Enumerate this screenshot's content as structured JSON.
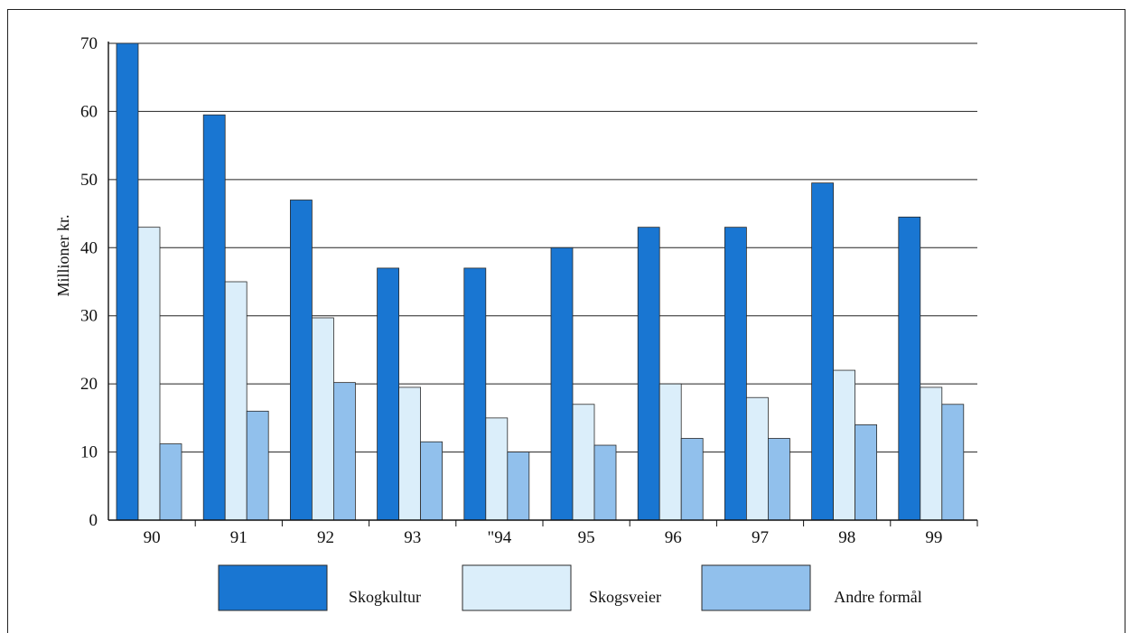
{
  "chart_data": {
    "type": "bar",
    "title": "",
    "xlabel": "",
    "ylabel": "Millioner kr.",
    "ylim": [
      0,
      70
    ],
    "yticks": [
      0,
      10,
      20,
      30,
      40,
      50,
      60,
      70
    ],
    "ytick_labels": [
      "0",
      "10",
      "20",
      "30",
      "40",
      "50",
      "60",
      "70"
    ],
    "grid": "horizontal",
    "legend_position": "bottom",
    "categories": [
      "90",
      "91",
      "92",
      "93",
      "\"94",
      "95",
      "96",
      "97",
      "98",
      "99"
    ],
    "series": [
      {
        "name": "Skogkultur",
        "color": "#1976d2",
        "values": [
          70,
          59.5,
          47,
          37,
          37,
          40,
          43,
          43,
          49.5,
          44.5
        ]
      },
      {
        "name": "Skogsveier",
        "color": "#dbeefa",
        "values": [
          43,
          35,
          29.7,
          19.5,
          15,
          17,
          20,
          18,
          22,
          19.5
        ]
      },
      {
        "name": "Andre formål",
        "color": "#91c0ec",
        "values": [
          11.2,
          16,
          20.2,
          11.5,
          10,
          11,
          12,
          12,
          14,
          17
        ]
      }
    ]
  }
}
